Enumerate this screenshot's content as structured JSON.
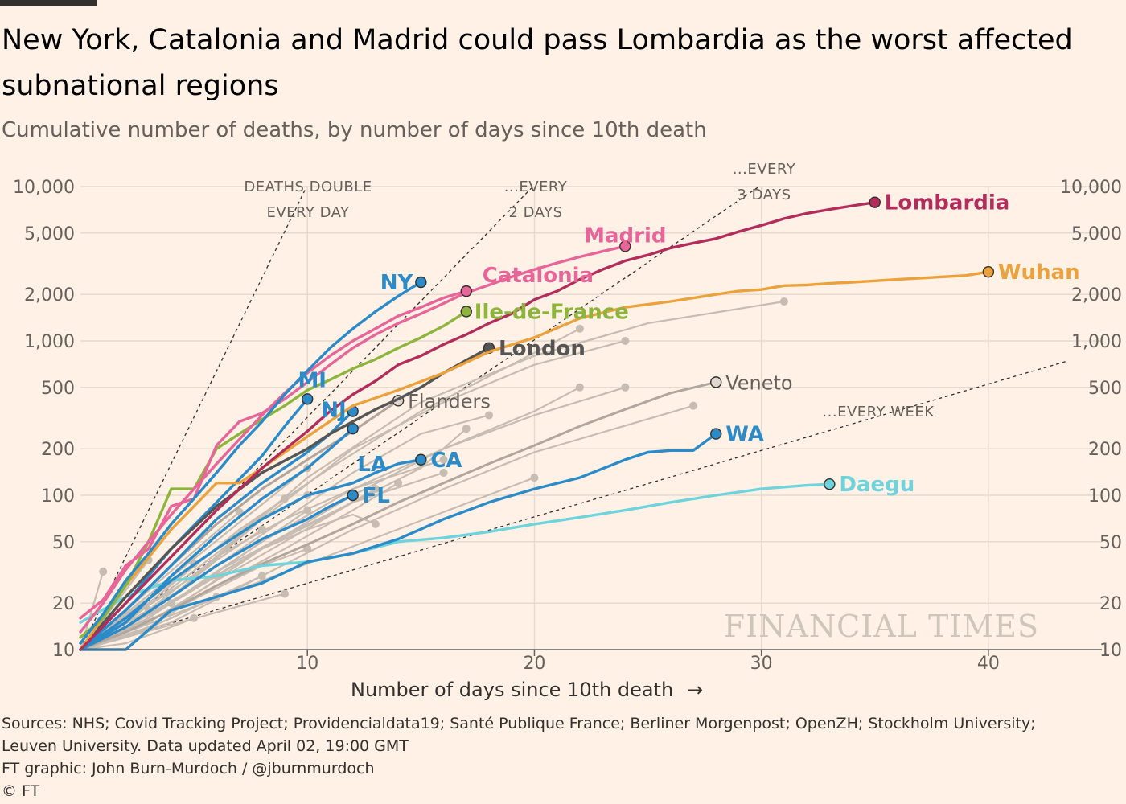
{
  "header": {
    "title": "New York, Catalonia and Madrid could pass Lombardia as the worst affected subnational regions",
    "subtitle": "Cumulative number of deaths, by number of days since 10th death"
  },
  "footer": {
    "sources_line1": "Sources: NHS; Covid Tracking Project; Providencialdata19; Santé Publique France; Berliner Morgenpost; OpenZH; Stockholm University;",
    "sources_line2": "Leuven University. Data updated April 02, 19:00 GMT",
    "credit": "FT graphic: John Burn-Murdoch / @jburnmurdoch",
    "copyright": "© FT"
  },
  "watermark": "FINANCIAL TIMES",
  "colors": {
    "background": "#fff1e5",
    "grid": "#e6d9ce",
    "grey_line": "#c7bcb2",
    "blue": "#2a8bc8",
    "pink": "#e8659a",
    "green": "#8db53d",
    "dark_red": "#b32d5c",
    "orange": "#eca23c",
    "dark_grey": "#555555",
    "teal": "#6fd3dc"
  },
  "chart_data": {
    "type": "line",
    "xlabel": "Number of days since 10th death",
    "xlabel_arrow": "→",
    "ylabel": "",
    "yscale": "log",
    "xlim": [
      0,
      45
    ],
    "ylim": [
      10,
      10000
    ],
    "x_ticks": [
      10,
      20,
      30,
      40
    ],
    "y_ticks": [
      {
        "value": 10,
        "label": "10"
      },
      {
        "value": 20,
        "label": "20"
      },
      {
        "value": 50,
        "label": "50"
      },
      {
        "value": 100,
        "label": "100"
      },
      {
        "value": 200,
        "label": "200"
      },
      {
        "value": 500,
        "label": "500"
      },
      {
        "value": 1000,
        "label": "1,000"
      },
      {
        "value": 2000,
        "label": "2,000"
      },
      {
        "value": 5000,
        "label": "5,000"
      },
      {
        "value": 10000,
        "label": "10,000"
      }
    ],
    "grid": true,
    "doubling_guides": [
      {
        "days": 1,
        "label1": "DEATHS DOUBLE",
        "label2": "EVERY DAY"
      },
      {
        "days": 2,
        "label1": "...EVERY",
        "label2": "2 DAYS"
      },
      {
        "days": 3,
        "label1": "...EVERY",
        "label2": "3 DAYS"
      },
      {
        "days": 7,
        "label1": "...EVERY WEEK",
        "label2": ""
      }
    ],
    "series": [
      {
        "name": "NY",
        "color": "blue",
        "label_side": "left",
        "x": [
          0,
          1,
          2,
          3,
          4,
          5,
          6,
          7,
          8,
          9,
          10,
          11,
          12,
          13,
          14,
          15
        ],
        "y": [
          11,
          17,
          28,
          42,
          65,
          95,
          140,
          210,
          300,
          450,
          640,
          900,
          1200,
          1550,
          1950,
          2400
        ]
      },
      {
        "name": "Catalonia",
        "color": "pink",
        "label_side": "right",
        "x": [
          0,
          1,
          2,
          3,
          4,
          5,
          6,
          7,
          8,
          9,
          10,
          11,
          12,
          13,
          14,
          15,
          16,
          17
        ],
        "y": [
          13,
          20,
          33,
          50,
          75,
          110,
          160,
          230,
          330,
          460,
          620,
          800,
          1000,
          1200,
          1450,
          1650,
          1900,
          2100
        ]
      },
      {
        "name": "Madrid",
        "color": "pink",
        "label_side": "above",
        "x": [
          0,
          1,
          2,
          3,
          4,
          5,
          6,
          7,
          8,
          9,
          10,
          11,
          12,
          13,
          14,
          15,
          16,
          17,
          18,
          19,
          20,
          21,
          22,
          23,
          24
        ],
        "y": [
          16,
          21,
          35,
          45,
          85,
          95,
          210,
          300,
          340,
          420,
          540,
          700,
          900,
          1100,
          1300,
          1500,
          1750,
          2050,
          2300,
          2600,
          2900,
          3200,
          3500,
          3800,
          4100
        ]
      },
      {
        "name": "Ile-de-France",
        "color": "green",
        "label_side": "right",
        "x": [
          0,
          1,
          2,
          3,
          4,
          5,
          6,
          7,
          8,
          9,
          10,
          11,
          12,
          13,
          14,
          15,
          16,
          17
        ],
        "y": [
          12,
          16,
          26,
          50,
          110,
          110,
          200,
          250,
          310,
          380,
          480,
          560,
          660,
          760,
          900,
          1050,
          1250,
          1550
        ]
      },
      {
        "name": "Lombardia",
        "color": "dark_red",
        "label_side": "right",
        "x": [
          0,
          2,
          4,
          6,
          8,
          10,
          11,
          12,
          13,
          14,
          15,
          16,
          17,
          18,
          19,
          20,
          21,
          22,
          23,
          24,
          25,
          26,
          27,
          28,
          29,
          30,
          31,
          32,
          33,
          34,
          35
        ],
        "y": [
          10,
          20,
          40,
          80,
          150,
          260,
          350,
          450,
          550,
          700,
          800,
          950,
          1100,
          1300,
          1500,
          1850,
          2100,
          2500,
          2900,
          3300,
          3600,
          4000,
          4300,
          4600,
          5100,
          5600,
          6200,
          6700,
          7100,
          7500,
          7900
        ]
      },
      {
        "name": "Wuhan",
        "color": "orange",
        "label_side": "right",
        "x": [
          0,
          2,
          4,
          6,
          7,
          8,
          10,
          12,
          14,
          16,
          18,
          20,
          22,
          24,
          26,
          28,
          29,
          30,
          31,
          32,
          33,
          34,
          35,
          36,
          37,
          38,
          39,
          40
        ],
        "y": [
          10,
          26,
          60,
          120,
          120,
          150,
          240,
          380,
          480,
          620,
          850,
          1050,
          1400,
          1650,
          1800,
          2000,
          2100,
          2150,
          2280,
          2300,
          2360,
          2400,
          2450,
          2500,
          2550,
          2600,
          2650,
          2800
        ]
      },
      {
        "name": "London",
        "color": "dark_grey",
        "label_side": "right",
        "x": [
          0,
          2,
          4,
          6,
          8,
          10,
          11,
          12,
          13,
          14,
          15,
          16,
          17,
          18
        ],
        "y": [
          10,
          22,
          45,
          85,
          140,
          200,
          250,
          300,
          360,
          420,
          500,
          620,
          750,
          900
        ]
      },
      {
        "name": "MI",
        "color": "blue",
        "label_side": "above",
        "x": [
          0,
          2,
          4,
          6,
          8,
          9,
          10
        ],
        "y": [
          10,
          20,
          45,
          90,
          180,
          280,
          420
        ]
      },
      {
        "name": "NJ",
        "color": "blue",
        "label_side": "left",
        "x": [
          0,
          2,
          4,
          6,
          8,
          10,
          11,
          12
        ],
        "y": [
          10,
          18,
          35,
          70,
          120,
          190,
          250,
          350
        ]
      },
      {
        "name": "LA",
        "color": "blue",
        "label_side": "below",
        "x": [
          0,
          2,
          4,
          6,
          8,
          10,
          11,
          12
        ],
        "y": [
          10,
          15,
          30,
          55,
          95,
          150,
          200,
          270
        ]
      },
      {
        "name": "CA",
        "color": "blue",
        "label_side": "right",
        "x": [
          0,
          2,
          4,
          6,
          8,
          10,
          12,
          13,
          14,
          15
        ],
        "y": [
          10,
          16,
          28,
          45,
          70,
          100,
          120,
          140,
          160,
          170
        ]
      },
      {
        "name": "FL",
        "color": "blue",
        "label_side": "right",
        "x": [
          0,
          2,
          4,
          6,
          8,
          10,
          11,
          12
        ],
        "y": [
          10,
          14,
          22,
          35,
          52,
          70,
          85,
          100
        ]
      },
      {
        "name": "WA",
        "color": "blue",
        "label_side": "right",
        "x": [
          0,
          2,
          4,
          6,
          8,
          10,
          12,
          14,
          16,
          18,
          20,
          22,
          24,
          25,
          26,
          27,
          28
        ],
        "y": [
          10,
          10,
          18,
          22,
          27,
          37,
          42,
          52,
          70,
          90,
          110,
          130,
          170,
          190,
          195,
          195,
          250
        ]
      },
      {
        "name": "Daegu",
        "color": "teal",
        "label_side": "right",
        "x": [
          0,
          2,
          4,
          6,
          8,
          10,
          12,
          14,
          16,
          18,
          20,
          22,
          24,
          26,
          28,
          30,
          32,
          33
        ],
        "y": [
          15,
          22,
          28,
          30,
          35,
          37,
          42,
          50,
          53,
          58,
          65,
          72,
          80,
          90,
          100,
          110,
          116,
          118
        ]
      },
      {
        "name": "Flanders",
        "color": "grey",
        "label_side": "right",
        "x": [
          0,
          2,
          4,
          6,
          8,
          10,
          12,
          14
        ],
        "y": [
          10,
          18,
          35,
          65,
          110,
          170,
          260,
          410
        ]
      },
      {
        "name": "Veneto",
        "color": "grey",
        "label_side": "right",
        "x": [
          0,
          2,
          4,
          6,
          8,
          10,
          12,
          14,
          16,
          18,
          20,
          22,
          24,
          26,
          28
        ],
        "y": [
          10,
          13,
          18,
          26,
          36,
          48,
          65,
          90,
          120,
          160,
          210,
          280,
          360,
          460,
          540
        ]
      }
    ],
    "background_series": [
      {
        "x": [
          0,
          5,
          10,
          15,
          20,
          25,
          31
        ],
        "y": [
          10,
          30,
          130,
          400,
          800,
          1300,
          1800
        ]
      },
      {
        "x": [
          0,
          4,
          8,
          12,
          16,
          20,
          24
        ],
        "y": [
          10,
          22,
          70,
          200,
          400,
          700,
          1000
        ]
      },
      {
        "x": [
          0,
          3,
          7,
          11,
          15,
          19,
          22
        ],
        "y": [
          10,
          20,
          60,
          150,
          350,
          700,
          1200
        ]
      },
      {
        "x": [
          0,
          4,
          8,
          12,
          16,
          20,
          24
        ],
        "y": [
          10,
          20,
          50,
          110,
          200,
          330,
          500
        ]
      },
      {
        "x": [
          0,
          4,
          8,
          12,
          16,
          20,
          22
        ],
        "y": [
          10,
          18,
          45,
          100,
          200,
          350,
          500
        ]
      },
      {
        "x": [
          0,
          4,
          8,
          12,
          16,
          20,
          27
        ],
        "y": [
          10,
          15,
          30,
          60,
          110,
          190,
          380
        ]
      },
      {
        "x": [
          0,
          3,
          6,
          9,
          12,
          15,
          18
        ],
        "y": [
          10,
          18,
          35,
          70,
          140,
          250,
          330
        ]
      },
      {
        "x": [
          0,
          3,
          6,
          9,
          12,
          15,
          17
        ],
        "y": [
          10,
          15,
          28,
          50,
          90,
          150,
          270
        ]
      },
      {
        "x": [
          0,
          3,
          6,
          9,
          12,
          16
        ],
        "y": [
          10,
          18,
          40,
          70,
          110,
          170
        ]
      },
      {
        "x": [
          0,
          3,
          6,
          9,
          12,
          16
        ],
        "y": [
          10,
          16,
          32,
          55,
          90,
          140
        ]
      },
      {
        "x": [
          0,
          3,
          6,
          9,
          12,
          14
        ],
        "y": [
          10,
          14,
          26,
          45,
          80,
          120
        ]
      },
      {
        "x": [
          0,
          2,
          5,
          8,
          11,
          13
        ],
        "y": [
          10,
          14,
          25,
          45,
          75,
          110
        ]
      },
      {
        "x": [
          0,
          2,
          4,
          6,
          8,
          10
        ],
        "y": [
          10,
          15,
          25,
          42,
          70,
          100
        ]
      },
      {
        "x": [
          0,
          2,
          4,
          6,
          8,
          10
        ],
        "y": [
          10,
          13,
          20,
          32,
          50,
          80
        ]
      },
      {
        "x": [
          0,
          2,
          4,
          6,
          8
        ],
        "y": [
          10,
          14,
          22,
          38,
          60
        ]
      },
      {
        "x": [
          0,
          2,
          4,
          6,
          8,
          10,
          12,
          13
        ],
        "y": [
          10,
          14,
          20,
          30,
          45,
          60,
          75,
          65
        ]
      },
      {
        "x": [
          0,
          2,
          4,
          6,
          8,
          10
        ],
        "y": [
          10,
          13,
          18,
          25,
          35,
          45
        ]
      },
      {
        "x": [
          0,
          2,
          4,
          6,
          8
        ],
        "y": [
          10,
          12,
          16,
          22,
          30
        ]
      },
      {
        "x": [
          0,
          2,
          4,
          6
        ],
        "y": [
          10,
          13,
          20,
          30
        ]
      },
      {
        "x": [
          0,
          2,
          4,
          6
        ],
        "y": [
          10,
          12,
          16,
          22
        ]
      },
      {
        "x": [
          0,
          2,
          4,
          5
        ],
        "y": [
          10,
          11,
          14,
          16
        ]
      },
      {
        "x": [
          0,
          1
        ],
        "y": [
          10,
          32
        ]
      },
      {
        "x": [
          0,
          3
        ],
        "y": [
          10,
          38
        ]
      },
      {
        "x": [
          0,
          4
        ],
        "y": [
          10,
          20
        ]
      },
      {
        "x": [
          0,
          5
        ],
        "y": [
          10,
          36
        ]
      },
      {
        "x": [
          0,
          9
        ],
        "y": [
          10,
          23
        ]
      },
      {
        "x": [
          0,
          10
        ],
        "y": [
          10,
          150
        ]
      },
      {
        "x": [
          0,
          20
        ],
        "y": [
          10,
          130
        ]
      },
      {
        "x": [
          0,
          7
        ],
        "y": [
          10,
          78
        ]
      },
      {
        "x": [
          0,
          1
        ],
        "y": [
          10,
          12
        ]
      },
      {
        "x": [
          0,
          3
        ],
        "y": [
          10,
          18
        ]
      },
      {
        "x": [
          0,
          9
        ],
        "y": [
          10,
          95
        ]
      }
    ]
  }
}
